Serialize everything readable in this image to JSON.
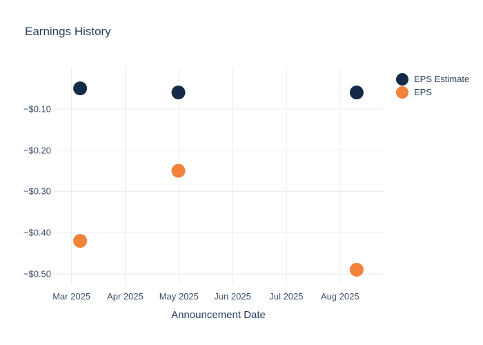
{
  "chart": {
    "title": "Earnings History",
    "xlabel": "Announcement Date"
  },
  "legend": {
    "items": [
      {
        "label": "EPS Estimate",
        "color": "#152a46"
      },
      {
        "label": "EPS",
        "color": "#f3823a"
      }
    ]
  },
  "colors": {
    "eps_estimate": "#152a46",
    "eps": "#f3823a",
    "grid": "#e6ebf4",
    "title_text": "#2a3f5f",
    "tick_text": "#3b4d68",
    "background": "#ffffff"
  },
  "chart_data": {
    "type": "scatter",
    "title": "Earnings History",
    "xlabel": "Announcement Date",
    "ylabel": "",
    "grid": true,
    "legend_position": "right",
    "x_axis": {
      "tick_labels": [
        "Mar 2025",
        "Apr 2025",
        "May 2025",
        "Jun 2025",
        "Jul 2025",
        "Aug 2025"
      ],
      "tick_months": [
        0,
        1,
        2,
        3,
        4,
        5
      ],
      "range_months": [
        -0.33,
        5.8
      ]
    },
    "y_axis": {
      "ticks": [
        {
          "value": -0.1,
          "label": "−$0.10"
        },
        {
          "value": -0.2,
          "label": "−$0.20"
        },
        {
          "value": -0.3,
          "label": "−$0.30"
        },
        {
          "value": -0.4,
          "label": "−$0.40"
        },
        {
          "value": -0.5,
          "label": "−$0.50"
        }
      ],
      "range": [
        0.002,
        -0.527
      ]
    },
    "series": [
      {
        "name": "EPS Estimate",
        "color": "#152a46",
        "marker": "circle",
        "points": [
          {
            "approx_date": "2025-03-06",
            "x_month": 0.16,
            "y": -0.05
          },
          {
            "approx_date": "2025-04-30",
            "x_month": 1.99,
            "y": -0.06
          },
          {
            "approx_date": "2025-08-10",
            "x_month": 5.31,
            "y": -0.06
          }
        ]
      },
      {
        "name": "EPS",
        "color": "#f3823a",
        "marker": "circle",
        "points": [
          {
            "approx_date": "2025-03-06",
            "x_month": 0.16,
            "y": -0.42
          },
          {
            "approx_date": "2025-04-30",
            "x_month": 1.99,
            "y": -0.25
          },
          {
            "approx_date": "2025-08-10",
            "x_month": 5.31,
            "y": -0.49
          }
        ]
      }
    ]
  }
}
